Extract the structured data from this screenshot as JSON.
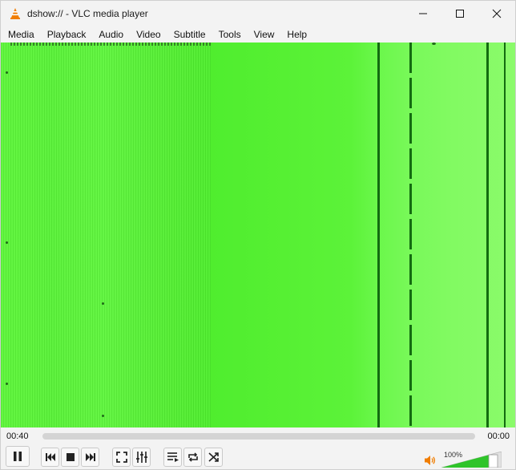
{
  "window": {
    "title": "dshow:// - VLC media player",
    "app_icon": "vlc-cone-icon"
  },
  "menu": {
    "items": [
      {
        "label": "Media"
      },
      {
        "label": "Playback"
      },
      {
        "label": "Audio"
      },
      {
        "label": "Video"
      },
      {
        "label": "Subtitle"
      },
      {
        "label": "Tools"
      },
      {
        "label": "View"
      },
      {
        "label": "Help"
      }
    ]
  },
  "player": {
    "elapsed": "00:40",
    "total": "00:00",
    "seek_fraction": 0,
    "volume_label": "100%",
    "volume_fraction": 1.0
  },
  "colors": {
    "video_green": "#5cf339",
    "accent_orange": "#f07d00",
    "volume_fill": "#2fc42a"
  },
  "controls": [
    {
      "name": "pause-button",
      "icon": "pause-icon"
    },
    {
      "name": "previous-button",
      "icon": "skip-back-icon"
    },
    {
      "name": "stop-button",
      "icon": "stop-icon"
    },
    {
      "name": "next-button",
      "icon": "skip-forward-icon"
    },
    {
      "name": "fullscreen-button",
      "icon": "fullscreen-icon"
    },
    {
      "name": "extended-settings-button",
      "icon": "equalizer-icon"
    },
    {
      "name": "playlist-button",
      "icon": "playlist-icon"
    },
    {
      "name": "loop-button",
      "icon": "loop-icon"
    },
    {
      "name": "shuffle-button",
      "icon": "shuffle-icon"
    }
  ]
}
